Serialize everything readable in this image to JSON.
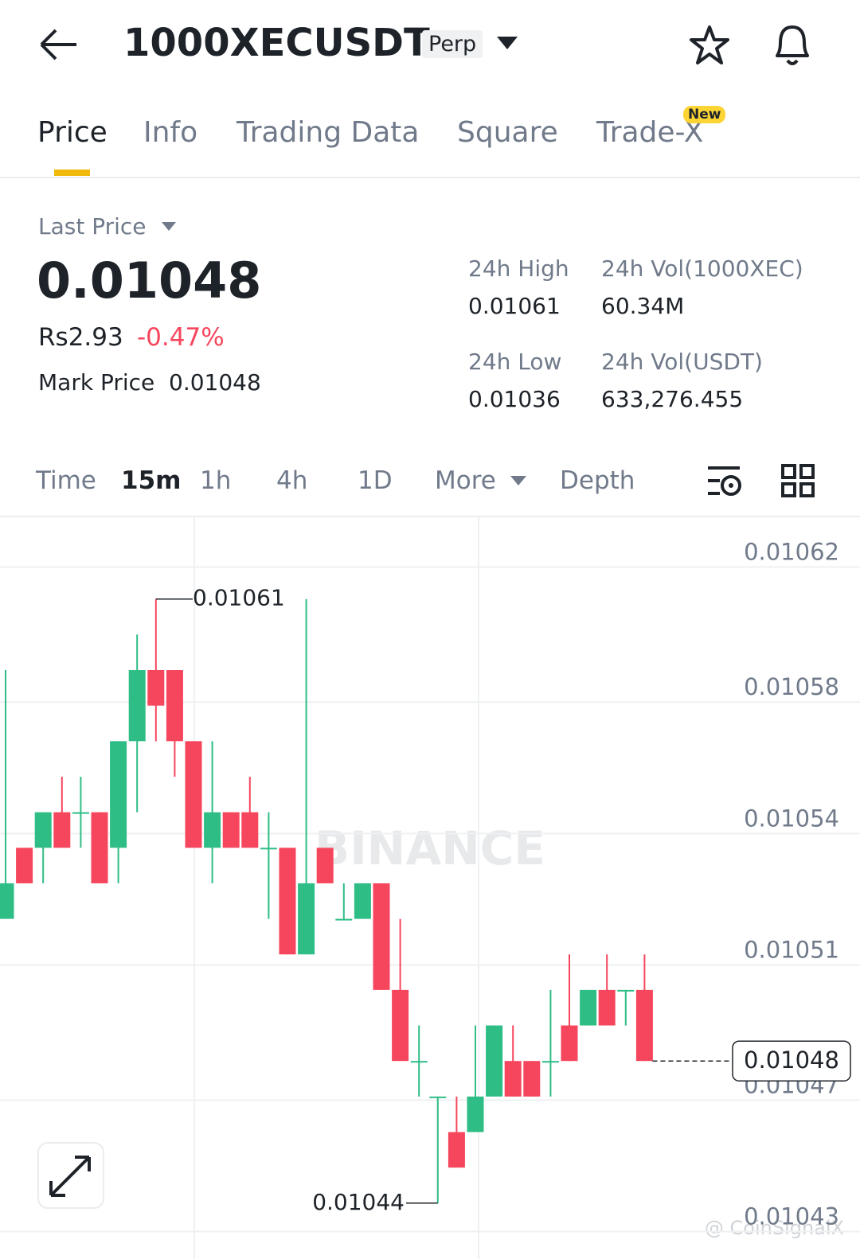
{
  "header": {
    "symbol": "1000XECUSDT",
    "badge": "Perp"
  },
  "tabs": [
    "Price",
    "Info",
    "Trading Data",
    "Square",
    "Trade-X"
  ],
  "new_badge": "New",
  "summary": {
    "last_price_label": "Last Price",
    "last_price": "0.01048",
    "fiat": "Rs2.93",
    "change": "-0.47%",
    "mark_label": "Mark Price",
    "mark_price": "0.01048"
  },
  "stats": [
    {
      "label": "24h High",
      "value": "0.01061"
    },
    {
      "label": "24h Vol(1000XEC)",
      "value": "60.34M"
    },
    {
      "label": "24h Low",
      "value": "0.01036"
    },
    {
      "label": "24h Vol(USDT)",
      "value": "633,276.455"
    }
  ],
  "intervals": [
    "Time",
    "15m",
    "1h",
    "4h",
    "1D",
    "More",
    "Depth"
  ],
  "chart_data": {
    "type": "candlestick",
    "up_color": "#2ebd85",
    "down_color": "#f6465d",
    "ylim": [
      0.010431,
      0.010633
    ],
    "yticks": [
      {
        "value": 0.010619,
        "label": "0.01062"
      },
      {
        "value": 0.010581,
        "label": "0.01058"
      },
      {
        "value": 0.010544,
        "label": "0.01054"
      },
      {
        "value": 0.010507,
        "label": "0.01051"
      },
      {
        "value": 0.010469,
        "label": "0.01047"
      },
      {
        "value": 0.010432,
        "label": "0.01043"
      }
    ],
    "grid": true,
    "candles": [
      {
        "open": 0.01052,
        "high": 0.01059,
        "low": 0.01052,
        "close": 0.01053
      },
      {
        "open": 0.01054,
        "high": 0.01054,
        "low": 0.01053,
        "close": 0.01053
      },
      {
        "open": 0.01054,
        "high": 0.01055,
        "low": 0.01053,
        "close": 0.01055
      },
      {
        "open": 0.01055,
        "high": 0.01056,
        "low": 0.01054,
        "close": 0.01054
      },
      {
        "open": 0.01055,
        "high": 0.01056,
        "low": 0.01054,
        "close": 0.01055
      },
      {
        "open": 0.01055,
        "high": 0.01055,
        "low": 0.01053,
        "close": 0.01053
      },
      {
        "open": 0.01054,
        "high": 0.01057,
        "low": 0.01053,
        "close": 0.01057
      },
      {
        "open": 0.01057,
        "high": 0.0106,
        "low": 0.01055,
        "close": 0.01059
      },
      {
        "open": 0.01059,
        "high": 0.01061,
        "low": 0.01057,
        "close": 0.01058
      },
      {
        "open": 0.01059,
        "high": 0.01059,
        "low": 0.01056,
        "close": 0.01057
      },
      {
        "open": 0.01057,
        "high": 0.01057,
        "low": 0.01054,
        "close": 0.01054
      },
      {
        "open": 0.01054,
        "high": 0.01057,
        "low": 0.01053,
        "close": 0.01055
      },
      {
        "open": 0.01055,
        "high": 0.01055,
        "low": 0.01054,
        "close": 0.01054
      },
      {
        "open": 0.01055,
        "high": 0.01056,
        "low": 0.01054,
        "close": 0.01054
      },
      {
        "open": 0.01054,
        "high": 0.01055,
        "low": 0.01052,
        "close": 0.01054
      },
      {
        "open": 0.01054,
        "high": 0.01054,
        "low": 0.01051,
        "close": 0.01051
      },
      {
        "open": 0.01051,
        "high": 0.01061,
        "low": 0.01051,
        "close": 0.01053
      },
      {
        "open": 0.01054,
        "high": 0.01054,
        "low": 0.01053,
        "close": 0.01053
      },
      {
        "open": 0.01052,
        "high": 0.01053,
        "low": 0.01052,
        "close": 0.01052
      },
      {
        "open": 0.01052,
        "high": 0.01053,
        "low": 0.01052,
        "close": 0.01053
      },
      {
        "open": 0.01053,
        "high": 0.01053,
        "low": 0.0105,
        "close": 0.0105
      },
      {
        "open": 0.0105,
        "high": 0.01052,
        "low": 0.01048,
        "close": 0.01048
      },
      {
        "open": 0.01048,
        "high": 0.01049,
        "low": 0.01047,
        "close": 0.01048
      },
      {
        "open": 0.01047,
        "high": 0.01047,
        "low": 0.01044,
        "close": 0.01047
      },
      {
        "open": 0.01046,
        "high": 0.01047,
        "low": 0.01045,
        "close": 0.01045
      },
      {
        "open": 0.01046,
        "high": 0.01049,
        "low": 0.01046,
        "close": 0.01047
      },
      {
        "open": 0.01047,
        "high": 0.01049,
        "low": 0.01047,
        "close": 0.01049
      },
      {
        "open": 0.01048,
        "high": 0.01049,
        "low": 0.01047,
        "close": 0.01047
      },
      {
        "open": 0.01048,
        "high": 0.01048,
        "low": 0.01047,
        "close": 0.01047
      },
      {
        "open": 0.01048,
        "high": 0.0105,
        "low": 0.01047,
        "close": 0.01048
      },
      {
        "open": 0.01049,
        "high": 0.01051,
        "low": 0.01048,
        "close": 0.01048
      },
      {
        "open": 0.01049,
        "high": 0.0105,
        "low": 0.01049,
        "close": 0.0105
      },
      {
        "open": 0.0105,
        "high": 0.01051,
        "low": 0.01049,
        "close": 0.01049
      },
      {
        "open": 0.0105,
        "high": 0.0105,
        "low": 0.01049,
        "close": 0.0105
      },
      {
        "open": 0.0105,
        "high": 0.01051,
        "low": 0.01048,
        "close": 0.01048
      }
    ],
    "high_label": 0.01061,
    "low_label": 0.01044,
    "last_price": 0.01048,
    "watermark": "BINANCE",
    "credit": "@ CoinSignalX"
  }
}
